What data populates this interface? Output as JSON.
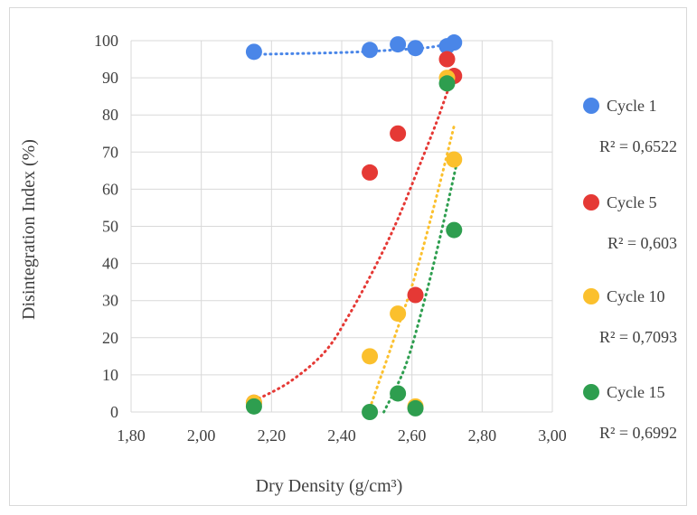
{
  "chart_data": {
    "type": "scatter",
    "title": "",
    "xlabel": "Dry Density (g/cm³)",
    "ylabel": "Disintegration Index (%)",
    "xlim": [
      1.8,
      3.0
    ],
    "ylim": [
      0,
      100
    ],
    "x_ticks": [
      "1,80",
      "2,00",
      "2,20",
      "2,40",
      "2,60",
      "2,80",
      "3,00"
    ],
    "y_ticks": [
      "0",
      "10",
      "20",
      "30",
      "40",
      "50",
      "60",
      "70",
      "80",
      "90",
      "100"
    ],
    "grid": true,
    "legend_position": "right",
    "series": [
      {
        "name": "Cycle 1",
        "color": "#4a86e8",
        "r2": "R² = 0,6522",
        "points": [
          [
            2.15,
            97
          ],
          [
            2.48,
            97.5
          ],
          [
            2.56,
            99
          ],
          [
            2.61,
            98
          ],
          [
            2.7,
            98.5
          ],
          [
            2.72,
            99.5
          ]
        ],
        "trend": [
          [
            2.15,
            96.3
          ],
          [
            2.4,
            96.8
          ],
          [
            2.55,
            97.5
          ],
          [
            2.65,
            98.2
          ],
          [
            2.72,
            99.5
          ]
        ]
      },
      {
        "name": "Cycle 5",
        "color": "#e53935",
        "r2": "R² = 0,603",
        "points": [
          [
            2.15,
            2.5
          ],
          [
            2.48,
            64.5
          ],
          [
            2.56,
            75
          ],
          [
            2.61,
            31.5
          ],
          [
            2.7,
            95
          ],
          [
            2.72,
            90.5
          ]
        ],
        "trend": [
          [
            2.15,
            3
          ],
          [
            2.25,
            8
          ],
          [
            2.35,
            16
          ],
          [
            2.42,
            26
          ],
          [
            2.5,
            40
          ],
          [
            2.56,
            52
          ],
          [
            2.62,
            66
          ],
          [
            2.67,
            78
          ],
          [
            2.7,
            86
          ],
          [
            2.72,
            91
          ]
        ]
      },
      {
        "name": "Cycle 10",
        "color": "#fbc02d",
        "r2": "R² = 0,7093",
        "points": [
          [
            2.15,
            2.5
          ],
          [
            2.48,
            15
          ],
          [
            2.56,
            26.5
          ],
          [
            2.61,
            1.5
          ],
          [
            2.7,
            90
          ],
          [
            2.72,
            68
          ]
        ],
        "trend": [
          [
            2.48,
            1
          ],
          [
            2.55,
            20
          ],
          [
            2.61,
            37
          ],
          [
            2.67,
            58
          ],
          [
            2.72,
            77
          ]
        ]
      },
      {
        "name": "Cycle 15",
        "color": "#2e9e4f",
        "r2": "R² = 0,6992",
        "points": [
          [
            2.15,
            1.5
          ],
          [
            2.48,
            0
          ],
          [
            2.56,
            5
          ],
          [
            2.61,
            1
          ],
          [
            2.7,
            88.5
          ],
          [
            2.72,
            49
          ]
        ],
        "trend": [
          [
            2.52,
            0
          ],
          [
            2.58,
            12
          ],
          [
            2.63,
            28
          ],
          [
            2.68,
            47
          ],
          [
            2.73,
            68
          ]
        ]
      }
    ]
  }
}
